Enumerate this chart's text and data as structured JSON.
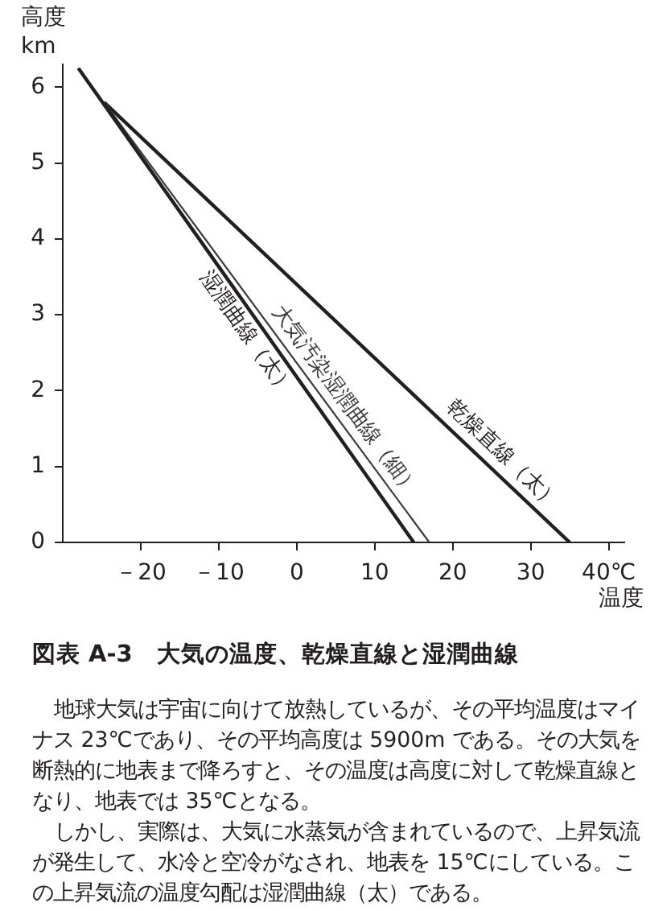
{
  "chart_data": {
    "type": "line",
    "title": "図表 A‐3　大気の温度、乾燥直線と湿潤曲線",
    "xlabel": "温度",
    "ylabel": "高度 km",
    "series": [
      {
        "name": "湿潤曲線（太）",
        "color": "#231f20",
        "x": [
          -28,
          15
        ],
        "values": [
          6.25,
          0
        ]
      },
      {
        "name": "大気汚染湿潤曲線（細）",
        "color": "#3a3a3a",
        "x": [
          -24.7,
          17
        ],
        "values": [
          5.8,
          0
        ]
      },
      {
        "name": "乾燥直線（太）",
        "color": "#231f20",
        "x": [
          -24.7,
          35
        ],
        "values": [
          5.8,
          0
        ]
      }
    ],
    "xlim": [
      -30,
      42
    ],
    "xticks": [
      {
        "value": -20,
        "label": "－20"
      },
      {
        "value": -10,
        "label": "－10"
      },
      0,
      10,
      20,
      30,
      {
        "value": 40,
        "label": "40℃"
      }
    ],
    "ylim": [
      0,
      6.3
    ],
    "yticks": [
      0,
      1,
      2,
      3,
      4,
      5,
      6
    ],
    "grid": false,
    "legend": false,
    "marker": "none",
    "line_style": "solid",
    "annotations": [
      "地球大気は宇宙に向けて放熱しているが、その平均温度はマイナス 23℃であり、その平均高度は 5900m である。その大気を断熱的に地表まで降ろすと、その温度は高度に対して乾燥直線となり、地表では 35℃となる。",
      "しかし、実際は、大気に水蒸気が含まれているので、上昇気流が発生して、水冷と空冷がなされ、地表を 15℃にしている。この上昇気流の温度勾配は湿潤曲線（太）である。"
    ]
  }
}
